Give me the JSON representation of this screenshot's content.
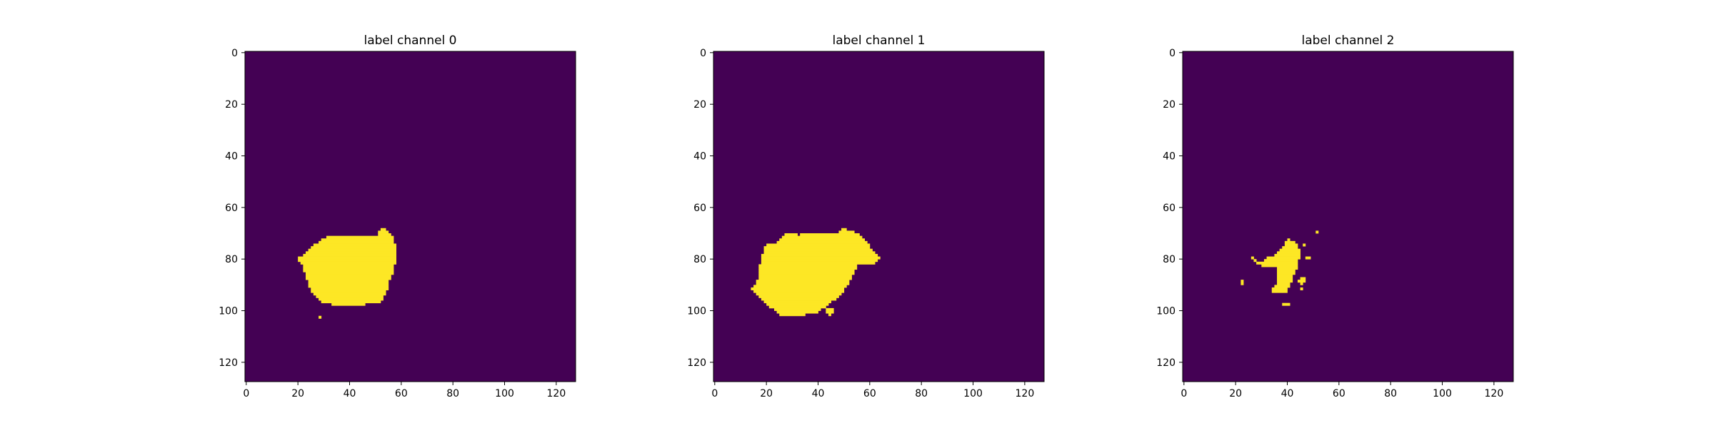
{
  "chart_data": [
    {
      "type": "heatmap",
      "title": "label channel 0",
      "xlabel": "",
      "ylabel": "",
      "xlim": [
        0,
        128
      ],
      "ylim": [
        128,
        0
      ],
      "xticks": [
        0,
        20,
        40,
        60,
        80,
        100,
        120
      ],
      "yticks": [
        0,
        20,
        40,
        60,
        80,
        100,
        120
      ],
      "grid": false,
      "colormap": "viridis",
      "background_value": 0,
      "foreground_value": 1,
      "mask_rows": [
        {
          "y": 69,
          "x": [
            [
              53,
              54
            ]
          ]
        },
        {
          "y": 70,
          "x": [
            [
              52,
              55
            ]
          ]
        },
        {
          "y": 71,
          "x": [
            [
              52,
              56
            ]
          ]
        },
        {
          "y": 72,
          "x": [
            [
              32,
              57
            ]
          ]
        },
        {
          "y": 73,
          "x": [
            [
              30,
              57
            ]
          ]
        },
        {
          "y": 74,
          "x": [
            [
              29,
              57
            ]
          ]
        },
        {
          "y": 75,
          "x": [
            [
              27,
              58
            ]
          ]
        },
        {
          "y": 76,
          "x": [
            [
              26,
              58
            ]
          ]
        },
        {
          "y": 77,
          "x": [
            [
              25,
              58
            ]
          ]
        },
        {
          "y": 78,
          "x": [
            [
              24,
              58
            ]
          ]
        },
        {
          "y": 79,
          "x": [
            [
              23,
              58
            ]
          ]
        },
        {
          "y": 80,
          "x": [
            [
              21,
              58
            ]
          ]
        },
        {
          "y": 81,
          "x": [
            [
              21,
              58
            ]
          ]
        },
        {
          "y": 82,
          "x": [
            [
              22,
              58
            ]
          ]
        },
        {
          "y": 83,
          "x": [
            [
              23,
              57
            ]
          ]
        },
        {
          "y": 84,
          "x": [
            [
              23,
              57
            ]
          ]
        },
        {
          "y": 85,
          "x": [
            [
              23,
              57
            ]
          ]
        },
        {
          "y": 86,
          "x": [
            [
              24,
              57
            ]
          ]
        },
        {
          "y": 87,
          "x": [
            [
              24,
              56
            ]
          ]
        },
        {
          "y": 88,
          "x": [
            [
              24,
              56
            ]
          ]
        },
        {
          "y": 89,
          "x": [
            [
              25,
              55
            ]
          ]
        },
        {
          "y": 90,
          "x": [
            [
              25,
              55
            ]
          ]
        },
        {
          "y": 91,
          "x": [
            [
              25,
              55
            ]
          ]
        },
        {
          "y": 92,
          "x": [
            [
              26,
              55
            ]
          ]
        },
        {
          "y": 93,
          "x": [
            [
              26,
              54
            ]
          ]
        },
        {
          "y": 94,
          "x": [
            [
              27,
              54
            ]
          ]
        },
        {
          "y": 95,
          "x": [
            [
              28,
              53
            ]
          ]
        },
        {
          "y": 96,
          "x": [
            [
              29,
              53
            ]
          ]
        },
        {
          "y": 97,
          "x": [
            [
              30,
              52
            ]
          ]
        },
        {
          "y": 98,
          "x": [
            [
              34,
              46
            ]
          ]
        },
        {
          "y": 103,
          "x": [
            [
              29,
              29
            ]
          ]
        }
      ]
    },
    {
      "type": "heatmap",
      "title": "label channel 1",
      "xlabel": "",
      "ylabel": "",
      "xlim": [
        0,
        128
      ],
      "ylim": [
        128,
        0
      ],
      "xticks": [
        0,
        20,
        40,
        60,
        80,
        100,
        120
      ],
      "yticks": [
        0,
        20,
        40,
        60,
        80,
        100,
        120
      ],
      "grid": false,
      "colormap": "viridis",
      "background_value": 0,
      "foreground_value": 1,
      "mask_rows": [
        {
          "y": 69,
          "x": [
            [
              50,
              51
            ]
          ]
        },
        {
          "y": 70,
          "x": [
            [
              49,
              54
            ]
          ]
        },
        {
          "y": 71,
          "x": [
            [
              28,
              32
            ],
            [
              34,
              56
            ]
          ]
        },
        {
          "y": 72,
          "x": [
            [
              27,
              57
            ]
          ]
        },
        {
          "y": 73,
          "x": [
            [
              26,
              58
            ]
          ]
        },
        {
          "y": 74,
          "x": [
            [
              25,
              59
            ]
          ]
        },
        {
          "y": 75,
          "x": [
            [
              21,
              60
            ]
          ]
        },
        {
          "y": 76,
          "x": [
            [
              20,
              60
            ]
          ]
        },
        {
          "y": 77,
          "x": [
            [
              20,
              61
            ]
          ]
        },
        {
          "y": 78,
          "x": [
            [
              20,
              62
            ]
          ]
        },
        {
          "y": 79,
          "x": [
            [
              19,
              63
            ]
          ]
        },
        {
          "y": 80,
          "x": [
            [
              19,
              64
            ]
          ]
        },
        {
          "y": 81,
          "x": [
            [
              19,
              63
            ]
          ]
        },
        {
          "y": 82,
          "x": [
            [
              19,
              62
            ]
          ]
        },
        {
          "y": 83,
          "x": [
            [
              18,
              55
            ]
          ]
        },
        {
          "y": 84,
          "x": [
            [
              18,
              55
            ]
          ]
        },
        {
          "y": 85,
          "x": [
            [
              18,
              54
            ]
          ]
        },
        {
          "y": 86,
          "x": [
            [
              18,
              54
            ]
          ]
        },
        {
          "y": 87,
          "x": [
            [
              18,
              53
            ]
          ]
        },
        {
          "y": 88,
          "x": [
            [
              18,
              53
            ]
          ]
        },
        {
          "y": 89,
          "x": [
            [
              17,
              52
            ]
          ]
        },
        {
          "y": 90,
          "x": [
            [
              17,
              52
            ]
          ]
        },
        {
          "y": 91,
          "x": [
            [
              16,
              51
            ]
          ]
        },
        {
          "y": 92,
          "x": [
            [
              15,
              50
            ]
          ]
        },
        {
          "y": 93,
          "x": [
            [
              16,
              50
            ]
          ]
        },
        {
          "y": 94,
          "x": [
            [
              17,
              49
            ]
          ]
        },
        {
          "y": 95,
          "x": [
            [
              18,
              48
            ]
          ]
        },
        {
          "y": 96,
          "x": [
            [
              19,
              47
            ]
          ]
        },
        {
          "y": 97,
          "x": [
            [
              20,
              45
            ]
          ]
        },
        {
          "y": 98,
          "x": [
            [
              21,
              44
            ]
          ]
        },
        {
          "y": 99,
          "x": [
            [
              22,
              43
            ]
          ]
        },
        {
          "y": 100,
          "x": [
            [
              24,
              41
            ],
            [
              44,
              46
            ]
          ]
        },
        {
          "y": 101,
          "x": [
            [
              25,
              40
            ],
            [
              44,
              46
            ]
          ]
        },
        {
          "y": 102,
          "x": [
            [
              26,
              35
            ],
            [
              45,
              45
            ]
          ]
        }
      ]
    },
    {
      "type": "heatmap",
      "title": "label channel 2",
      "xlabel": "",
      "ylabel": "",
      "xlim": [
        0,
        128
      ],
      "ylim": [
        128,
        0
      ],
      "xticks": [
        0,
        20,
        40,
        60,
        80,
        100,
        120
      ],
      "yticks": [
        0,
        20,
        40,
        60,
        80,
        100,
        120
      ],
      "grid": false,
      "colormap": "viridis",
      "background_value": 0,
      "foreground_value": 1,
      "mask_rows": [
        {
          "y": 70,
          "x": [
            [
              52,
              52
            ]
          ]
        },
        {
          "y": 73,
          "x": [
            [
              41,
              41
            ]
          ]
        },
        {
          "y": 74,
          "x": [
            [
              40,
              43
            ]
          ]
        },
        {
          "y": 75,
          "x": [
            [
              40,
              44
            ],
            [
              47,
              47
            ]
          ]
        },
        {
          "y": 76,
          "x": [
            [
              39,
              44
            ]
          ]
        },
        {
          "y": 77,
          "x": [
            [
              38,
              45
            ]
          ]
        },
        {
          "y": 78,
          "x": [
            [
              37,
              45
            ]
          ]
        },
        {
          "y": 79,
          "x": [
            [
              36,
              45
            ]
          ]
        },
        {
          "y": 80,
          "x": [
            [
              27,
              27
            ],
            [
              33,
              45
            ],
            [
              48,
              49
            ]
          ]
        },
        {
          "y": 81,
          "x": [
            [
              28,
              28
            ],
            [
              32,
              44
            ]
          ]
        },
        {
          "y": 82,
          "x": [
            [
              29,
              44
            ]
          ]
        },
        {
          "y": 83,
          "x": [
            [
              31,
              38
            ],
            [
              39,
              44
            ]
          ]
        },
        {
          "y": 84,
          "x": [
            [
              37,
              44
            ]
          ]
        },
        {
          "y": 85,
          "x": [
            [
              37,
              43
            ]
          ]
        },
        {
          "y": 86,
          "x": [
            [
              37,
              43
            ]
          ]
        },
        {
          "y": 87,
          "x": [
            [
              37,
              42
            ]
          ]
        },
        {
          "y": 88,
          "x": [
            [
              37,
              42
            ],
            [
              46,
              47
            ]
          ]
        },
        {
          "y": 89,
          "x": [
            [
              23,
              23
            ],
            [
              37,
              42
            ],
            [
              45,
              47
            ]
          ]
        },
        {
          "y": 90,
          "x": [
            [
              23,
              23
            ],
            [
              37,
              41
            ],
            [
              46,
              46
            ]
          ]
        },
        {
          "y": 91,
          "x": [
            [
              36,
              41
            ]
          ]
        },
        {
          "y": 92,
          "x": [
            [
              35,
              40
            ],
            [
              46,
              46
            ]
          ]
        },
        {
          "y": 93,
          "x": [
            [
              35,
              38
            ],
            [
              39,
              40
            ]
          ]
        },
        {
          "y": 98,
          "x": [
            [
              39,
              41
            ]
          ]
        }
      ]
    }
  ]
}
